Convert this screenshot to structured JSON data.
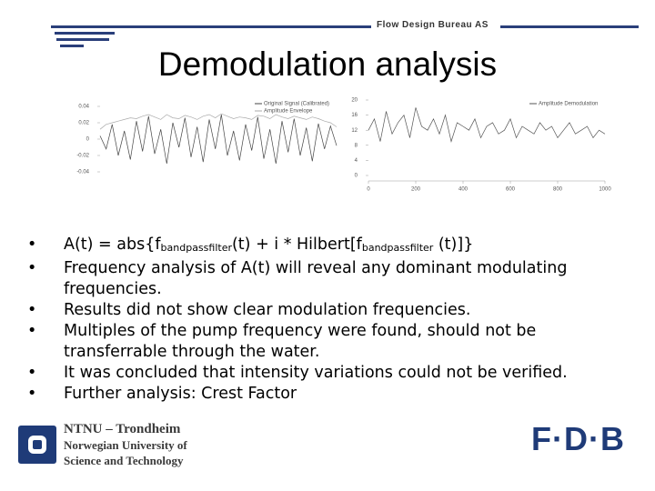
{
  "header": {
    "company": "Flow Design Bureau AS"
  },
  "title": "Demodulation analysis",
  "figure": {
    "left": {
      "type": "line",
      "yticks": [
        0.04,
        0.02,
        0,
        -0.02,
        -0.04
      ],
      "ylim": [
        -0.05,
        0.05
      ],
      "series": [
        {
          "name": "Original Signal (Calibrated)",
          "color": "#444444",
          "values": [
            0.004,
            -0.012,
            0.018,
            -0.02,
            0.01,
            -0.025,
            0.022,
            -0.015,
            0.028,
            -0.018,
            0.012,
            -0.03,
            0.02,
            -0.01,
            0.026,
            -0.022,
            0.015,
            -0.028,
            0.024,
            -0.012,
            0.03,
            -0.02,
            0.01,
            -0.026,
            0.018,
            -0.014,
            0.027,
            -0.024,
            0.012,
            -0.03,
            0.022,
            -0.016,
            0.025,
            -0.02,
            0.014,
            -0.027,
            0.019,
            -0.012,
            0.016,
            -0.008
          ]
        },
        {
          "name": "Amplitude Envelope",
          "color": "#aaaaaa",
          "values": [
            0.012,
            0.018,
            0.02,
            0.022,
            0.024,
            0.026,
            0.025,
            0.028,
            0.03,
            0.027,
            0.024,
            0.03,
            0.026,
            0.025,
            0.029,
            0.027,
            0.024,
            0.028,
            0.03,
            0.026,
            0.031,
            0.028,
            0.025,
            0.027,
            0.026,
            0.024,
            0.029,
            0.028,
            0.025,
            0.03,
            0.027,
            0.025,
            0.028,
            0.026,
            0.024,
            0.027,
            0.025,
            0.022,
            0.02,
            0.015
          ]
        }
      ]
    },
    "right": {
      "type": "line",
      "xlim": [
        0,
        1000
      ],
      "xticks": [
        0,
        200,
        400,
        600,
        800,
        1000
      ],
      "ylim": [
        0,
        20
      ],
      "yticks": [
        20,
        16,
        12,
        8,
        4,
        0
      ],
      "x": [
        0,
        25,
        50,
        75,
        100,
        125,
        150,
        175,
        200,
        225,
        250,
        275,
        300,
        325,
        350,
        375,
        400,
        425,
        450,
        475,
        500,
        525,
        550,
        575,
        600,
        625,
        650,
        675,
        700,
        725,
        750,
        775,
        800,
        825,
        850,
        875,
        900,
        925,
        950,
        975,
        1000
      ],
      "series": [
        {
          "name": "Amplitude Demodulation",
          "color": "#555555",
          "values": [
            12,
            15,
            9,
            17,
            11,
            14,
            16,
            10,
            18,
            13,
            12,
            15,
            11,
            16,
            9,
            14,
            13,
            12,
            15,
            10,
            13,
            14,
            11,
            12,
            15,
            10,
            13,
            12,
            11,
            14,
            12,
            13,
            10,
            12,
            14,
            11,
            12,
            13,
            10,
            12,
            11
          ]
        }
      ]
    }
  },
  "bullets": [
    [
      "A(t) = abs{f",
      "bandpassfilter",
      "(t) + i * Hilbert[f",
      "bandpassfilter",
      " (t)]}"
    ],
    "Frequency analysis of A(t) will reveal any dominant modulating frequencies.",
    "Results did not show clear modulation frequencies.",
    "Multiples of the pump frequency were found, should not be transferrable through the water.",
    "It was concluded that intensity variations could not be verified.",
    "Further analysis: Crest Factor"
  ],
  "footer": {
    "institution": [
      "NTNU – Trondheim",
      "Norwegian University of",
      "Science and Technology"
    ],
    "logo": "F·D·B"
  }
}
